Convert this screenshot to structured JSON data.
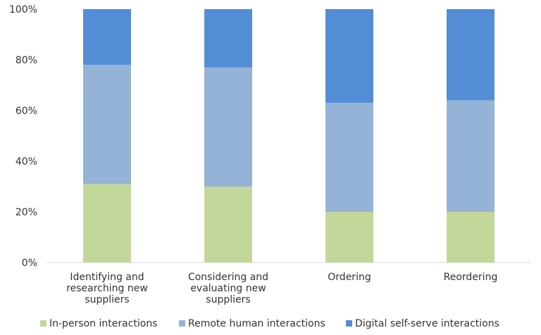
{
  "chart_data": {
    "type": "bar",
    "stacked": true,
    "title": "",
    "xlabel": "",
    "ylabel": "",
    "ylim": [
      0,
      100
    ],
    "y_ticks": [
      "0%",
      "20%",
      "40%",
      "60%",
      "80%",
      "100%"
    ],
    "y_tick_values": [
      0,
      20,
      40,
      60,
      80,
      100
    ],
    "grid": false,
    "legend_position": "bottom",
    "categories": [
      "Identifying and researching new suppliers",
      "Considering and evaluating new suppliers",
      "Ordering",
      "Reordering"
    ],
    "category_lines": [
      [
        "Identifying and",
        "researching new",
        "suppliers"
      ],
      [
        "Considering and",
        "evaluating new",
        "suppliers"
      ],
      [
        "Ordering"
      ],
      [
        "Reordering"
      ]
    ],
    "series": [
      {
        "name": "In-person interactions",
        "color": "#c4d79b",
        "values": [
          31,
          30,
          20,
          20
        ]
      },
      {
        "name": "Remote human interactions",
        "color": "#95b3d7",
        "values": [
          47,
          47,
          43,
          44
        ]
      },
      {
        "name": "Digital self-serve interactions",
        "color": "#538dd5",
        "values": [
          22,
          23,
          37,
          36
        ]
      }
    ]
  }
}
